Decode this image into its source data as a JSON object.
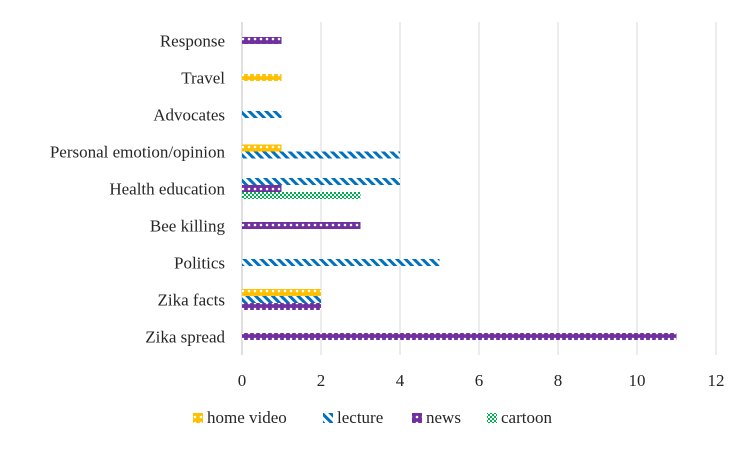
{
  "chart_data": {
    "type": "bar",
    "orientation": "horizontal",
    "categories": [
      "Zika spread",
      "Zika facts",
      "Politics",
      "Bee killing",
      "Health education",
      "Personal emotion/opinion",
      "Advocates",
      "Travel",
      "Response"
    ],
    "series": [
      {
        "name": "home video",
        "color": "#ffc000",
        "pattern": "dots",
        "values": [
          null,
          2,
          null,
          null,
          null,
          1,
          null,
          1,
          null
        ]
      },
      {
        "name": "lecture",
        "color": "#0070c0",
        "pattern": "diagonal-stripes",
        "values": [
          null,
          2,
          5,
          null,
          4,
          4,
          1,
          null,
          null
        ]
      },
      {
        "name": "news",
        "color": "#7030a0",
        "pattern": "dots",
        "values": [
          11,
          2,
          null,
          3,
          1,
          null,
          null,
          null,
          1
        ]
      },
      {
        "name": "cartoon",
        "color": "#00b050",
        "pattern": "checker",
        "values": [
          null,
          null,
          null,
          null,
          3,
          null,
          null,
          null,
          null
        ]
      }
    ],
    "xticks": [
      "0",
      "2",
      "4",
      "6",
      "8",
      "10",
      "12"
    ],
    "xlim": [
      0,
      12
    ],
    "grid": true,
    "legend": "bottom",
    "title": "",
    "xlabel": "",
    "ylabel": ""
  }
}
